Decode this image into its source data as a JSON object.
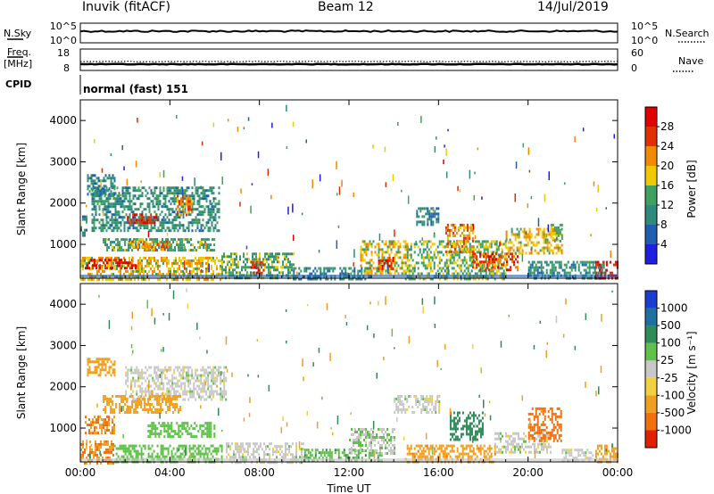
{
  "header": {
    "station": "Inuvik (fitACF)",
    "beam": "Beam 12",
    "date": "14/Jul/2019"
  },
  "strips": {
    "nsky_label": "N.Sky",
    "nsearch_label": "N.Search",
    "freq_label_1": "Freq.",
    "freq_label_2": "[MHz]",
    "nave_label": "Nave",
    "cpid_label": "CPID",
    "cpid_value": "normal (fast) 151",
    "nsky_ticks": [
      "10^5",
      "10^0"
    ],
    "nsearch_ticks": [
      "10^5",
      "10^0"
    ],
    "freq_ticks": [
      "18",
      "8"
    ],
    "nave_ticks": [
      "60",
      "0"
    ]
  },
  "chart_data": [
    {
      "type": "heatmap",
      "name": "power",
      "title": "",
      "xlabel": "Time UT",
      "ylabel": "Slant Range [km]",
      "colorbar_label": "Power [dB]",
      "x_ticks": [
        "00:00",
        "04:00",
        "08:00",
        "12:00",
        "16:00",
        "20:00",
        "00:00"
      ],
      "xlim": [
        0,
        24
      ],
      "y_ticks": [
        1000,
        2000,
        3000,
        4000
      ],
      "ylim": [
        180,
        4500
      ],
      "colorbar_ticks": [
        "4",
        "8",
        "12",
        "16",
        "20",
        "24",
        "28"
      ],
      "colorbar_range": [
        0,
        32
      ],
      "colors": [
        "#1f1fe0",
        "#1f5fb0",
        "#2e8a7a",
        "#3fa060",
        "#f0c800",
        "#f08a00",
        "#e03000",
        "#e00000"
      ],
      "regions": [
        {
          "t0": 0.0,
          "t1": 6.3,
          "r0": 180,
          "r1": 700,
          "level": 19
        },
        {
          "t0": 0.2,
          "t1": 2.5,
          "r0": 400,
          "r1": 650,
          "level": 28
        },
        {
          "t0": 1.0,
          "t1": 6.0,
          "r0": 850,
          "r1": 1150,
          "level": 13
        },
        {
          "t0": 2.3,
          "t1": 4.0,
          "r0": 900,
          "r1": 1100,
          "level": 22
        },
        {
          "t0": 0.5,
          "t1": 6.2,
          "r0": 1350,
          "r1": 2400,
          "level": 11
        },
        {
          "t0": 2.0,
          "t1": 3.5,
          "r0": 1500,
          "r1": 1750,
          "level": 28
        },
        {
          "t0": 4.3,
          "t1": 5.0,
          "r0": 1700,
          "r1": 2200,
          "level": 23
        },
        {
          "t0": 0.3,
          "t1": 1.5,
          "r0": 2200,
          "r1": 2700,
          "level": 9
        },
        {
          "t0": 0.0,
          "t1": 0.3,
          "r0": 1200,
          "r1": 1700,
          "level": 10
        },
        {
          "t0": 6.3,
          "t1": 9.5,
          "r0": 180,
          "r1": 800,
          "level": 14
        },
        {
          "t0": 7.6,
          "t1": 8.2,
          "r0": 300,
          "r1": 600,
          "level": 27
        },
        {
          "t0": 9.5,
          "t1": 13.0,
          "r0": 180,
          "r1": 450,
          "level": 10
        },
        {
          "t0": 12.5,
          "t1": 14.5,
          "r0": 300,
          "r1": 1100,
          "level": 18
        },
        {
          "t0": 13.3,
          "t1": 14.0,
          "r0": 400,
          "r1": 700,
          "level": 27
        },
        {
          "t0": 14.5,
          "t1": 19.0,
          "r0": 180,
          "r1": 1100,
          "level": 15
        },
        {
          "t0": 16.3,
          "t1": 17.5,
          "r0": 800,
          "r1": 1500,
          "level": 22
        },
        {
          "t0": 15.0,
          "t1": 16.0,
          "r0": 1500,
          "r1": 1900,
          "level": 9
        },
        {
          "t0": 17.5,
          "t1": 19.5,
          "r0": 400,
          "r1": 800,
          "level": 25
        },
        {
          "t0": 19.0,
          "t1": 21.5,
          "r0": 800,
          "r1": 1400,
          "level": 19
        },
        {
          "t0": 20.0,
          "t1": 23.5,
          "r0": 180,
          "r1": 600,
          "level": 11
        },
        {
          "t0": 23.0,
          "t1": 24.0,
          "r0": 180,
          "r1": 600,
          "level": 28
        },
        {
          "t0": 21.0,
          "t1": 21.5,
          "r0": 1100,
          "r1": 1500,
          "level": 14
        }
      ]
    },
    {
      "type": "heatmap",
      "name": "velocity",
      "title": "",
      "xlabel": "Time UT",
      "ylabel": "Slant Range [km]",
      "colorbar_label": "Velocity [m s⁻¹]",
      "x_ticks": [
        "00:00",
        "04:00",
        "08:00",
        "12:00",
        "16:00",
        "20:00",
        "00:00"
      ],
      "xlim": [
        0,
        24
      ],
      "y_ticks": [
        1000,
        2000,
        3000,
        4000
      ],
      "ylim": [
        180,
        4500
      ],
      "colorbar_ticks": [
        "1000",
        "500",
        "100",
        "25",
        "-25",
        "-100",
        "-500",
        "-1000"
      ],
      "colors": [
        "#1a3fd0",
        "#1f6fa0",
        "#2f8a5a",
        "#5fc04a",
        "#c8c8c8",
        "#f2d040",
        "#f0a020",
        "#f07010",
        "#e02000"
      ],
      "regions": [
        {
          "t0": 0.0,
          "t1": 1.5,
          "r0": 180,
          "r1": 700,
          "velocity": -500
        },
        {
          "t0": 1.5,
          "t1": 6.3,
          "r0": 180,
          "r1": 600,
          "velocity": 60
        },
        {
          "t0": 2.0,
          "t1": 6.5,
          "r0": 1700,
          "r1": 2500,
          "velocity": 0
        },
        {
          "t0": 1.0,
          "t1": 4.5,
          "r0": 1400,
          "r1": 1800,
          "velocity": -300
        },
        {
          "t0": 0.3,
          "t1": 1.5,
          "r0": 2300,
          "r1": 2700,
          "velocity": -150
        },
        {
          "t0": 3.0,
          "t1": 6.0,
          "r0": 800,
          "r1": 1150,
          "velocity": 60
        },
        {
          "t0": 0.2,
          "t1": 1.5,
          "r0": 900,
          "r1": 1300,
          "velocity": -500
        },
        {
          "t0": 6.5,
          "t1": 10.0,
          "r0": 180,
          "r1": 650,
          "velocity": 0
        },
        {
          "t0": 10.0,
          "t1": 13.5,
          "r0": 180,
          "r1": 500,
          "velocity": 80
        },
        {
          "t0": 12.0,
          "t1": 14.0,
          "r0": 400,
          "r1": 1000,
          "velocity": 20
        },
        {
          "t0": 14.5,
          "t1": 18.5,
          "r0": 180,
          "r1": 600,
          "velocity": -400
        },
        {
          "t0": 16.5,
          "t1": 18.0,
          "r0": 700,
          "r1": 1400,
          "velocity": 200
        },
        {
          "t0": 14.0,
          "t1": 16.0,
          "r0": 1400,
          "r1": 1800,
          "velocity": 0
        },
        {
          "t0": 18.5,
          "t1": 21.0,
          "r0": 400,
          "r1": 900,
          "velocity": 0
        },
        {
          "t0": 20.0,
          "t1": 21.5,
          "r0": 700,
          "r1": 1500,
          "velocity": -700
        },
        {
          "t0": 21.5,
          "t1": 23.0,
          "r0": 180,
          "r1": 500,
          "velocity": 0
        },
        {
          "t0": 23.0,
          "t1": 24.0,
          "r0": 180,
          "r1": 600,
          "velocity": -200
        }
      ]
    }
  ]
}
